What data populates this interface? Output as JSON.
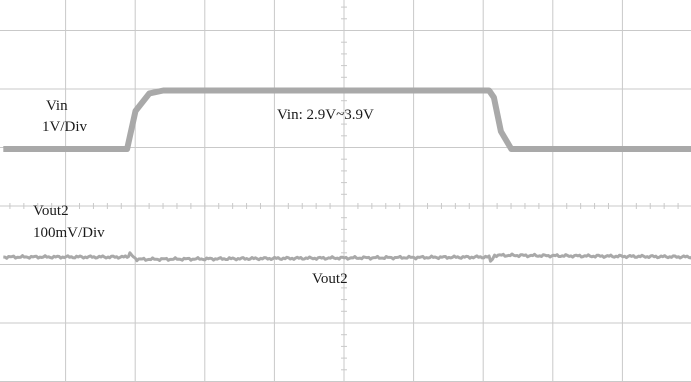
{
  "chart_data": {
    "type": "line",
    "grid": true,
    "grid_divisions": {
      "x": 10,
      "y": 6
    },
    "trace_color": "#a9a9a9",
    "grid_color": "#c9c9c9",
    "labels": {
      "vin_name": "Vin",
      "vin_scale": "1V/Div",
      "vin_annotation": "Vin: 2.9V~3.9V",
      "vout_name": "Vout2",
      "vout_scale": "100mV/Div",
      "vout_annotation": "Vout2"
    },
    "series": [
      {
        "name": "Vin",
        "unit": "V",
        "x_div": [
          0,
          1.78,
          1.9,
          2.1,
          2.3,
          6.98,
          7.05,
          7.15,
          7.3,
          10
        ],
        "values": [
          2.9,
          2.9,
          3.55,
          3.85,
          3.9,
          3.9,
          3.78,
          3.2,
          2.9,
          2.9
        ]
      },
      {
        "name": "Vout2",
        "x_div": [
          0,
          1.78,
          1.82,
          1.92,
          6.98,
          7.0,
          7.06,
          10
        ],
        "values_div": [
          0,
          0,
          0.05,
          -0.04,
          0,
          -0.07,
          0.03,
          0
        ]
      }
    ]
  }
}
